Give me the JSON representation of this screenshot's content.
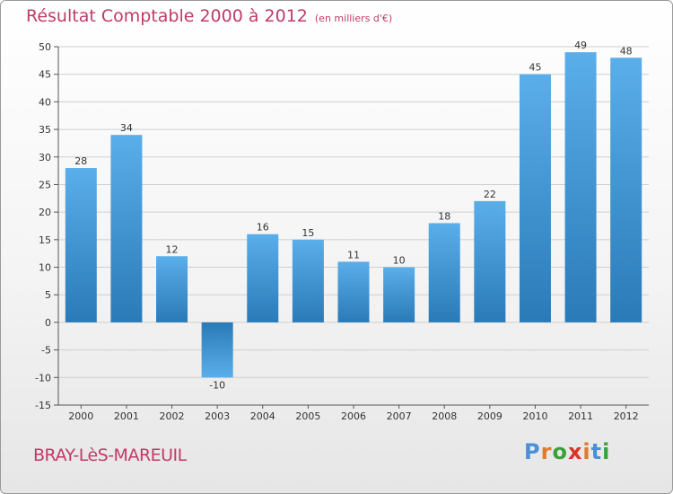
{
  "title": "Résultat Comptable 2000 à 2012",
  "unit": "(en milliers d'€)",
  "commune": "BRAY-LèS-MAREUIL",
  "logo": "Proxiti",
  "logo_colors": [
    "#4a90d9",
    "#e07b2a",
    "#3aa13a",
    "#d9342b",
    "#e07b2a",
    "#4a90d9",
    "#3aa13a"
  ],
  "colors": {
    "accent": "#c03a6a",
    "bar_top": "#5aaeea",
    "bar_bottom": "#2a7ab8",
    "grid": "#cfcfcf"
  },
  "chart_data": {
    "type": "bar",
    "title": "Résultat Comptable 2000 à 2012",
    "xlabel": "",
    "ylabel": "",
    "ylim": [
      -15,
      50
    ],
    "yticks": [
      -15,
      -10,
      -5,
      0,
      5,
      10,
      15,
      20,
      25,
      30,
      35,
      40,
      45,
      50
    ],
    "ytick_labels": [
      "-15",
      "-10",
      "-5",
      "0",
      "5",
      "10",
      "15",
      "20",
      "25",
      "30",
      "35",
      "40",
      "45",
      "50"
    ],
    "categories": [
      "2000",
      "2001",
      "2002",
      "2003",
      "2004",
      "2005",
      "2006",
      "2007",
      "2008",
      "2009",
      "2010",
      "2011",
      "2012"
    ],
    "values": [
      28,
      34,
      12,
      -10,
      16,
      15,
      11,
      10,
      18,
      22,
      45,
      49,
      48
    ],
    "value_labels": [
      "28",
      "34",
      "12",
      "-10",
      "16",
      "15",
      "11",
      "10",
      "18",
      "22",
      "45",
      "49",
      "48"
    ],
    "grid": true
  }
}
